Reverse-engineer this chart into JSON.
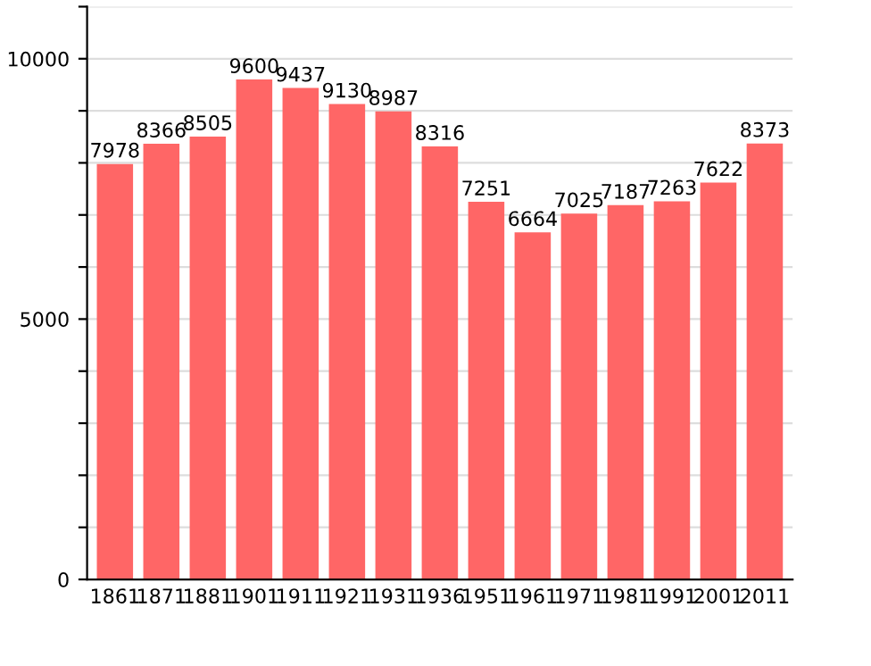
{
  "chart_data": {
    "type": "bar",
    "categories": [
      "1861",
      "1871",
      "1881",
      "1901",
      "1911",
      "1921",
      "1931",
      "1936",
      "1951",
      "1961",
      "1971",
      "1981",
      "1991",
      "2001",
      "2011"
    ],
    "values": [
      7978,
      8366,
      8505,
      9600,
      9437,
      9130,
      8987,
      8316,
      7251,
      6664,
      7025,
      7187,
      7263,
      7622,
      8373
    ],
    "color": "#ff6666",
    "ylim": [
      0,
      11000
    ],
    "yticks": [
      0,
      {
        "value": 1000,
        "label": null
      },
      {
        "value": 2000,
        "label": null
      },
      {
        "value": 3000,
        "label": null
      },
      {
        "value": 4000,
        "label": null
      },
      5000,
      {
        "value": 6000,
        "label": null
      },
      {
        "value": 7000,
        "label": null
      },
      {
        "value": 8000,
        "label": null
      },
      {
        "value": 9000,
        "label": null
      },
      10000,
      {
        "value": 11000,
        "label": null
      }
    ],
    "grid": "y",
    "data_labels": true
  }
}
